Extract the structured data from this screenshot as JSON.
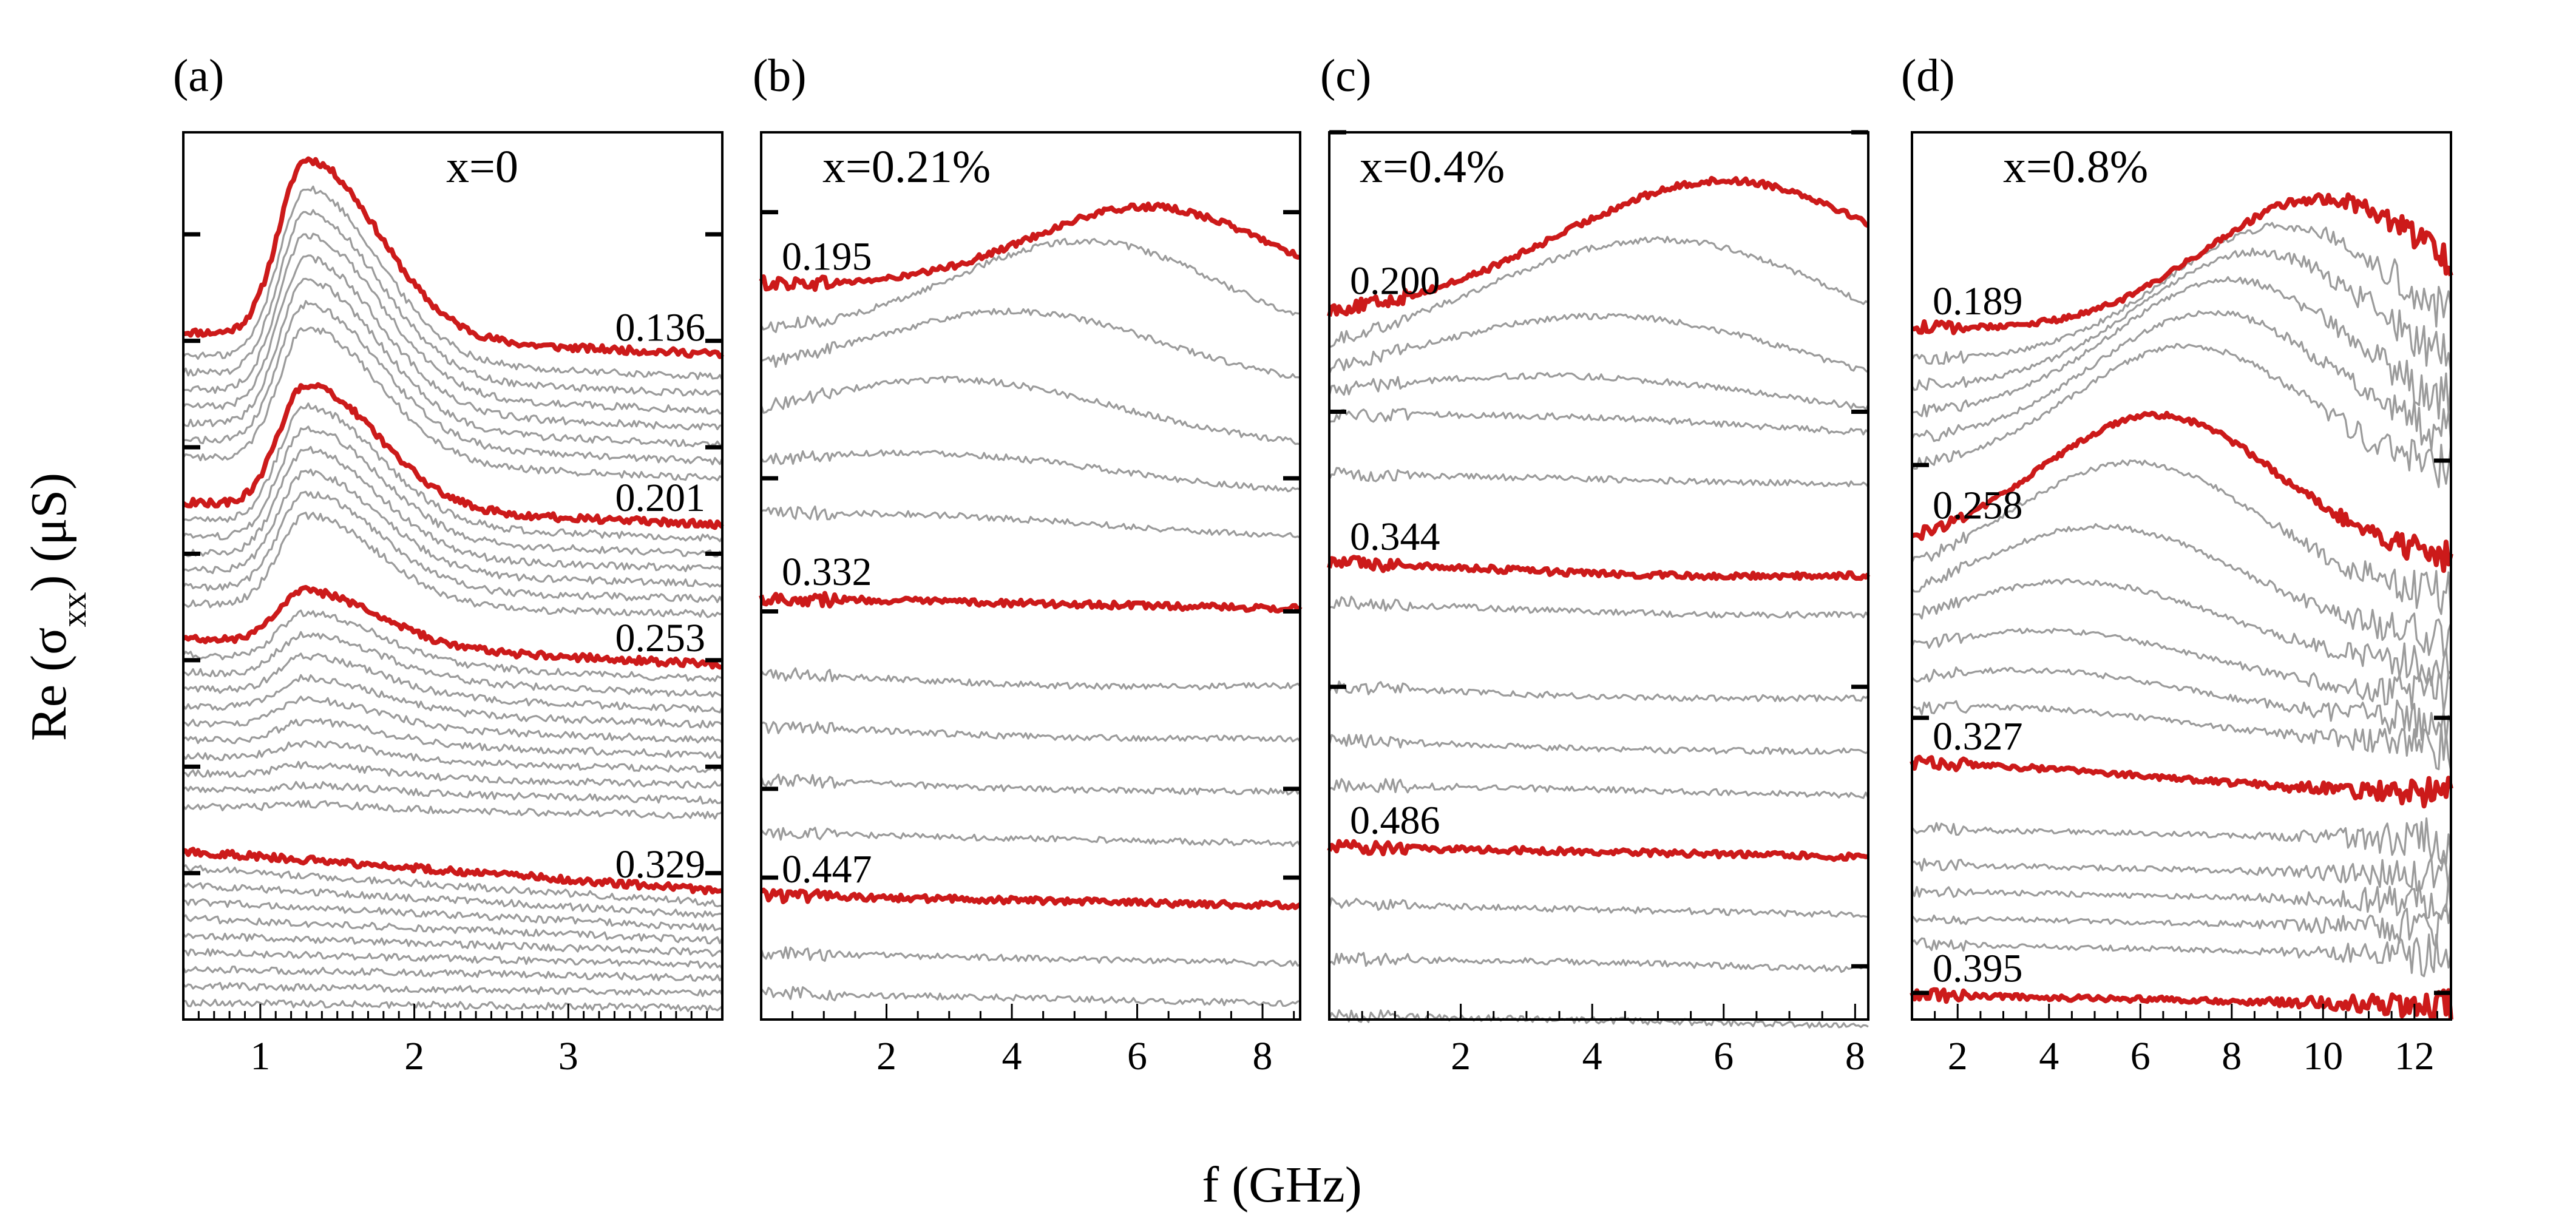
{
  "chart_data": {
    "type": "line",
    "xlabel": "f (GHz)",
    "ylabel": "Re (σxx) (μS)",
    "ylabel_parts": {
      "base": "Re (σ",
      "sub": "xx",
      "tail": ") (μS)"
    },
    "colors": {
      "highlight": "#cc1a1a",
      "trace": "#9b9b9b",
      "axis": "#000000"
    },
    "panels": [
      {
        "label": "(a)",
        "composition": "x=0",
        "xlim": [
          0.5,
          4.0
        ],
        "xticks": [
          1,
          2,
          3
        ],
        "xtick_labels": [
          "1",
          "2",
          "3"
        ],
        "minor_step": 0.1,
        "ylim": [
          0,
          1
        ],
        "left_tick_fracs": [
          0.115,
          0.235,
          0.355,
          0.475,
          0.595,
          0.715,
          0.835
        ],
        "right_tick_fracs": [
          0.115,
          0.235,
          0.355,
          0.475,
          0.595,
          0.715,
          0.835
        ],
        "shape": "peak",
        "params": {
          "peak_x": 1.3,
          "peak_w": 0.23,
          "peak_w2": 0.6
        },
        "noise": 0.004,
        "traces": [
          {
            "label": "0.136",
            "highlight": true,
            "base": 0.775,
            "amp": 0.2,
            "slope": 0.025
          },
          {
            "base": 0.749,
            "amp": 0.193,
            "slope": 0.025
          },
          {
            "base": 0.73,
            "amp": 0.186,
            "slope": 0.025
          },
          {
            "base": 0.711,
            "amp": 0.179,
            "slope": 0.025
          },
          {
            "base": 0.692,
            "amp": 0.172,
            "slope": 0.025
          },
          {
            "base": 0.673,
            "amp": 0.165,
            "slope": 0.025
          },
          {
            "base": 0.654,
            "amp": 0.158,
            "slope": 0.025
          },
          {
            "base": 0.635,
            "amp": 0.151,
            "slope": 0.025
          },
          {
            "label": "0.201",
            "highlight": true,
            "base": 0.583,
            "amp": 0.138,
            "slope": 0.025
          },
          {
            "base": 0.564,
            "amp": 0.132,
            "slope": 0.022
          },
          {
            "base": 0.545,
            "amp": 0.126,
            "slope": 0.02
          },
          {
            "base": 0.526,
            "amp": 0.12,
            "slope": 0.018
          },
          {
            "base": 0.507,
            "amp": 0.114,
            "slope": 0.016
          },
          {
            "base": 0.488,
            "amp": 0.108,
            "slope": 0.014
          },
          {
            "base": 0.469,
            "amp": 0.102,
            "slope": 0.012
          },
          {
            "label": "0.253",
            "highlight": true,
            "base": 0.43,
            "amp": 0.06,
            "slope": 0.03
          },
          {
            "base": 0.411,
            "amp": 0.054,
            "slope": 0.028
          },
          {
            "base": 0.392,
            "amp": 0.048,
            "slope": 0.026
          },
          {
            "base": 0.373,
            "amp": 0.042,
            "slope": 0.024
          },
          {
            "base": 0.354,
            "amp": 0.036,
            "slope": 0.022
          },
          {
            "base": 0.335,
            "amp": 0.03,
            "slope": 0.02
          },
          {
            "base": 0.316,
            "amp": 0.024,
            "slope": 0.018
          },
          {
            "base": 0.297,
            "amp": 0.018,
            "slope": 0.016
          },
          {
            "base": 0.278,
            "amp": 0.012,
            "slope": 0.014
          },
          {
            "base": 0.259,
            "amp": 0.008,
            "slope": 0.012
          },
          {
            "base": 0.24,
            "amp": 0.005,
            "slope": 0.01
          },
          {
            "label": "0.329",
            "highlight": true,
            "base": 0.19,
            "amp": 0.0,
            "slope": 0.045
          },
          {
            "base": 0.171,
            "amp": 0.0,
            "slope": 0.04
          },
          {
            "base": 0.152,
            "amp": 0.0,
            "slope": 0.035
          },
          {
            "base": 0.133,
            "amp": 0.0,
            "slope": 0.03
          },
          {
            "base": 0.114,
            "amp": 0.0,
            "slope": 0.025
          },
          {
            "base": 0.095,
            "amp": 0.0,
            "slope": 0.02
          },
          {
            "base": 0.076,
            "amp": 0.0,
            "slope": 0.015
          },
          {
            "base": 0.057,
            "amp": 0.0,
            "slope": 0.01
          },
          {
            "base": 0.038,
            "amp": 0.0,
            "slope": 0.008
          },
          {
            "base": 0.019,
            "amp": 0.0,
            "slope": 0.006
          }
        ]
      },
      {
        "label": "(b)",
        "composition": "x=0.21%",
        "xlim": [
          0.0,
          8.6
        ],
        "xticks": [
          2,
          4,
          6,
          8
        ],
        "xtick_labels": [
          "2",
          "4",
          "6",
          "8"
        ],
        "minor_step": 0.5,
        "ylim": [
          0,
          1
        ],
        "left_tick_fracs": [
          0.09,
          0.39,
          0.54,
          0.74,
          0.84
        ],
        "right_tick_fracs": [
          0.09,
          0.39,
          0.54,
          0.74,
          0.84
        ],
        "shape": "hump",
        "params": {},
        "noise": 0.0035,
        "traces": [
          {
            "label": "0.195",
            "highlight": true,
            "base": 0.83,
            "hump": 0.095,
            "center": 6.2,
            "width": 1.9
          },
          {
            "base": 0.78,
            "hump": 0.11,
            "center": 5.2,
            "width": 2.1
          },
          {
            "base": 0.74,
            "hump": 0.08,
            "center": 4.1,
            "width": 2.3
          },
          {
            "base": 0.69,
            "hump": 0.07,
            "center": 3.1,
            "width": 2.6
          },
          {
            "base": 0.63,
            "hump": 0.04,
            "center": 2.6,
            "width": 3.0
          },
          {
            "base": 0.57,
            "hump": 0.02,
            "center": 2.0,
            "width": 3.5
          },
          {
            "label": "0.332",
            "highlight": true,
            "base": 0.475,
            "hump": 0.0,
            "center": 4.0,
            "width": 3.0
          },
          {
            "base": 0.39,
            "hump": -0.008,
            "center": 5.0,
            "width": 2.5
          },
          {
            "base": 0.33,
            "hump": -0.006,
            "center": 5.0,
            "width": 2.5
          },
          {
            "base": 0.27,
            "hump": -0.005,
            "center": 5.0,
            "width": 2.5
          },
          {
            "base": 0.21,
            "hump": 0.0,
            "center": 4.0,
            "width": 3.0
          },
          {
            "label": "0.447",
            "highlight": true,
            "base": 0.14,
            "hump": 0.0,
            "center": 4.0,
            "width": 3.0
          },
          {
            "base": 0.075,
            "hump": 0.0,
            "center": 4.0,
            "width": 3.0
          },
          {
            "base": 0.03,
            "hump": 0.0,
            "center": 4.0,
            "width": 3.0
          }
        ]
      },
      {
        "label": "(c)",
        "composition": "x=0.4%",
        "xlim": [
          0.0,
          8.2
        ],
        "xticks": [
          2,
          4,
          6,
          8
        ],
        "xtick_labels": [
          "2",
          "4",
          "6",
          "8"
        ],
        "minor_step": 0.5,
        "ylim": [
          0,
          1
        ],
        "left_tick_fracs": [
          0.0,
          0.315,
          0.625
        ],
        "right_tick_fracs": [
          0.0,
          0.315,
          0.625,
          0.94
        ],
        "shape": "hump",
        "params": {},
        "noise": 0.0035,
        "traces": [
          {
            "label": "0.200",
            "highlight": true,
            "base": 0.8,
            "hump": 0.165,
            "center": 6.1,
            "width": 2.6
          },
          {
            "base": 0.765,
            "hump": 0.15,
            "center": 5.1,
            "width": 2.8
          },
          {
            "base": 0.735,
            "hump": 0.1,
            "center": 4.3,
            "width": 3.0
          },
          {
            "base": 0.71,
            "hump": 0.05,
            "center": 3.6,
            "width": 3.5
          },
          {
            "base": 0.68,
            "hump": 0.02,
            "center": 3.0,
            "width": 4.0
          },
          {
            "base": 0.615,
            "hump": 0.0,
            "center": 3.0,
            "width": 4.0
          },
          {
            "label": "0.344",
            "highlight": true,
            "base": 0.515,
            "hump": -0.008,
            "center": 5.0,
            "width": 2.5
          },
          {
            "base": 0.47,
            "hump": -0.006,
            "center": 5.0,
            "width": 2.5
          },
          {
            "base": 0.375,
            "hump": -0.006,
            "center": 4.5,
            "width": 2.5
          },
          {
            "base": 0.315,
            "hump": -0.005,
            "center": 4.5,
            "width": 2.5
          },
          {
            "base": 0.265,
            "hump": 0.0,
            "center": 4.0,
            "width": 3.0
          },
          {
            "label": "0.486",
            "highlight": true,
            "base": 0.195,
            "hump": 0.0,
            "center": 4.0,
            "width": 3.0
          },
          {
            "base": 0.13,
            "hump": 0.0,
            "center": 4.0,
            "width": 3.0
          },
          {
            "base": 0.068,
            "hump": 0.004,
            "center": 4.0,
            "width": 3.0
          },
          {
            "base": 0.005,
            "hump": 0.0,
            "center": 4.0,
            "width": 3.0
          }
        ]
      },
      {
        "label": "(d)",
        "composition": "x=0.8%",
        "xlim": [
          1.0,
          12.8
        ],
        "xticks": [
          2,
          4,
          6,
          8,
          10,
          12
        ],
        "xtick_labels": [
          "2",
          "4",
          "6",
          "8",
          "10",
          "12"
        ],
        "minor_step": 0.5,
        "ylim": [
          0,
          1
        ],
        "left_tick_fracs": [
          0.375,
          0.66,
          0.97
        ],
        "right_tick_fracs": [
          0.37,
          0.66,
          0.97
        ],
        "shape": "hump_noisy",
        "params": {},
        "noise": 0.003,
        "traces": [
          {
            "label": "0.189",
            "highlight": true,
            "base": 0.78,
            "hump": 0.155,
            "center": 10.0,
            "width": 2.6
          },
          {
            "base": 0.745,
            "hump": 0.16,
            "center": 9.2,
            "width": 2.6
          },
          {
            "base": 0.715,
            "hump": 0.16,
            "center": 8.6,
            "width": 2.6
          },
          {
            "base": 0.685,
            "hump": 0.16,
            "center": 8.0,
            "width": 2.6
          },
          {
            "base": 0.655,
            "hump": 0.155,
            "center": 7.6,
            "width": 2.6
          },
          {
            "base": 0.625,
            "hump": 0.15,
            "center": 7.1,
            "width": 2.6
          },
          {
            "label": "0.258",
            "highlight": true,
            "base": 0.545,
            "hump": 0.16,
            "center": 6.4,
            "width": 2.6
          },
          {
            "base": 0.515,
            "hump": 0.15,
            "center": 5.9,
            "width": 2.8
          },
          {
            "base": 0.485,
            "hump": 0.12,
            "center": 5.2,
            "width": 3.0
          },
          {
            "base": 0.455,
            "hump": 0.09,
            "center": 4.6,
            "width": 3.2
          },
          {
            "base": 0.42,
            "hump": 0.065,
            "center": 4.0,
            "width": 3.4
          },
          {
            "base": 0.385,
            "hump": 0.05,
            "center": 3.6,
            "width": 3.6
          },
          {
            "base": 0.35,
            "hump": 0.035,
            "center": 3.0,
            "width": 4.0
          },
          {
            "label": "0.327",
            "highlight": true,
            "base": 0.29,
            "hump": -0.025,
            "center": 12.0,
            "width": 5.0
          },
          {
            "base": 0.215,
            "hump": 0.0,
            "center": 6.0,
            "width": 3.0
          },
          {
            "base": 0.175,
            "hump": 0.0,
            "center": 6.0,
            "width": 3.0
          },
          {
            "base": 0.145,
            "hump": 0.0,
            "center": 6.0,
            "width": 3.0
          },
          {
            "base": 0.115,
            "hump": 0.0,
            "center": 6.0,
            "width": 3.0
          },
          {
            "base": 0.085,
            "hump": 0.0,
            "center": 6.0,
            "width": 3.0
          },
          {
            "label": "0.395",
            "highlight": true,
            "base": 0.028,
            "hump": 0.0,
            "center": 6.0,
            "width": 3.0
          }
        ]
      }
    ]
  }
}
